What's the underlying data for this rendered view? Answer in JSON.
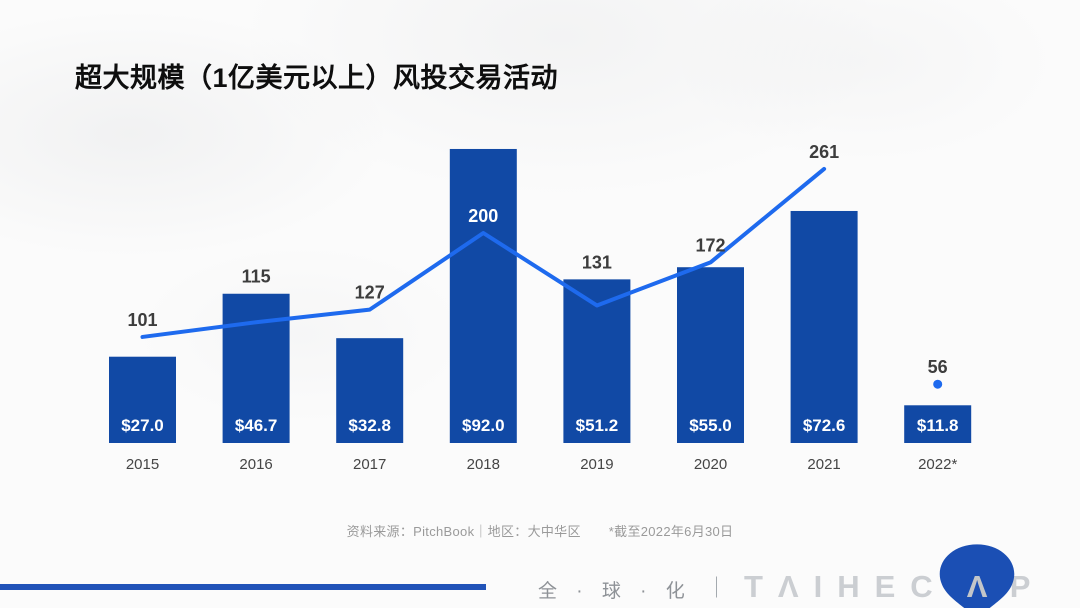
{
  "slide": {
    "title": "超大规模（1亿美元以上）风投交易活动",
    "source": {
      "left": "资料来源：PitchBook｜地区：大中华区",
      "right": "*截至2022年6月30日"
    },
    "footer": {
      "tagline": "全 · 球 · 化",
      "divider": "｜",
      "brand_left": "TΛIHEC",
      "brand_mark_letter": "Λ",
      "brand_right": "P",
      "accent_color": "#2153B8",
      "balloon_color": "#1B4FB4"
    }
  },
  "chart_data": {
    "type": "bar",
    "subtype": "combo-bar-line",
    "title": "超大规模（1亿美元以上）风投交易活动",
    "categories": [
      "2015",
      "2016",
      "2017",
      "2018",
      "2019",
      "2020",
      "2021",
      "2022*"
    ],
    "series": [
      {
        "name": "deal-value-bars",
        "type": "bar",
        "color": "#1149A5",
        "values": [
          27.0,
          46.7,
          32.8,
          92.0,
          51.2,
          55.0,
          72.6,
          11.8
        ],
        "labels": [
          "$27.0",
          "$46.7",
          "$32.8",
          "$92.0",
          "$51.2",
          "$55.0",
          "$72.6",
          "$11.8"
        ]
      },
      {
        "name": "deal-count-line",
        "type": "line",
        "color": "#1E6AEE",
        "values": [
          101,
          115,
          127,
          200,
          131,
          172,
          261,
          56
        ],
        "line_connects": "2015-2021",
        "last_point_style": "isolated-dot"
      }
    ],
    "axes_visible": false,
    "grid": false,
    "legend": false,
    "source_note": "资料来源：PitchBook｜地区：大中华区 *截至2022年6月30日"
  }
}
